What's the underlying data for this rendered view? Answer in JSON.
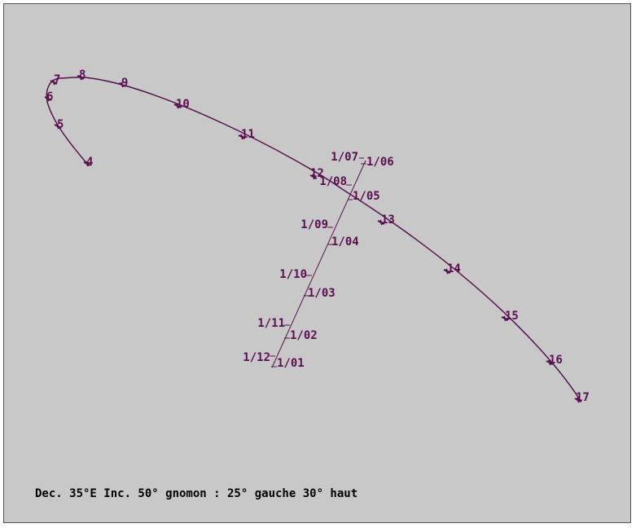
{
  "colors": {
    "background": "#c8c8c8",
    "curve": "#5a1050",
    "caption": "#000000"
  },
  "hour_labels": [
    "4",
    "5",
    "6",
    "7",
    "8",
    "9",
    "10",
    "11",
    "12",
    "13",
    "14",
    "15",
    "16",
    "17"
  ],
  "date_labels_left": [
    "1/07",
    "1/08",
    "1/09",
    "1/10",
    "1/11",
    "1/12"
  ],
  "date_labels_right": [
    "1/06",
    "1/05",
    "1/04",
    "1/03",
    "1/02",
    "1/01"
  ],
  "caption": "Dec. 35°E Inc. 50° gnomon : 25° gauche 30° haut"
}
